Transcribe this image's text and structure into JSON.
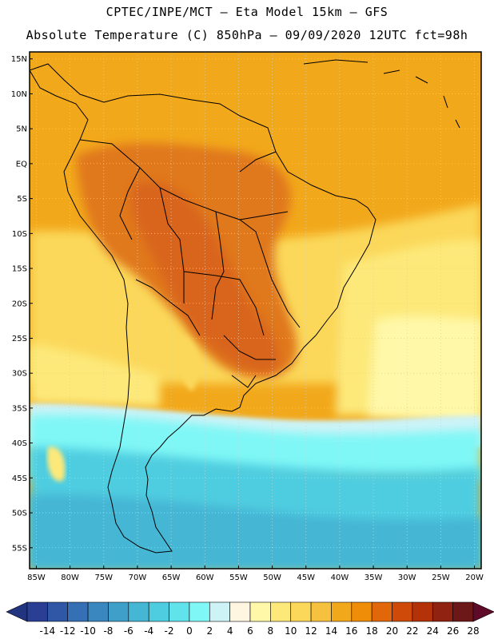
{
  "header": {
    "line1": "CPTEC/INPE/MCT  —   Eta Model 15km  —  GFS",
    "line2": "Absolute Temperature (C) 850hPa  —  09/09/2020 12UTC fct=98h"
  },
  "map": {
    "lon_range": [
      -86,
      -19
    ],
    "lat_range": [
      -58,
      16
    ],
    "lat_labels": [
      "15N",
      "10N",
      "5N",
      "EQ",
      "5S",
      "10S",
      "15S",
      "20S",
      "25S",
      "30S",
      "35S",
      "40S",
      "45S",
      "50S",
      "55S"
    ],
    "lat_values": [
      15,
      10,
      5,
      0,
      -5,
      -10,
      -15,
      -20,
      -25,
      -30,
      -35,
      -40,
      -45,
      -50,
      -55
    ],
    "lon_labels": [
      "85W",
      "80W",
      "75W",
      "70W",
      "65W",
      "60W",
      "55W",
      "50W",
      "45W",
      "40W",
      "35W",
      "30W",
      "25W",
      "20W"
    ],
    "lon_values": [
      -85,
      -80,
      -75,
      -70,
      -65,
      -60,
      -55,
      -50,
      -45,
      -40,
      -35,
      -30,
      -25,
      -20
    ]
  },
  "colorbar": {
    "values": [
      "-14",
      "-12",
      "-10",
      "-8",
      "-6",
      "-4",
      "-2",
      "0",
      "2",
      "4",
      "6",
      "8",
      "10",
      "12",
      "14",
      "16",
      "18",
      "20",
      "22",
      "24",
      "26",
      "28"
    ],
    "colors": [
      "#2a3f94",
      "#2f57a6",
      "#3470b3",
      "#3a87bf",
      "#3f9fc9",
      "#45b6d4",
      "#4fcde0",
      "#61e3ec",
      "#7ff7f6",
      "#cdf3f7",
      "#fff6e2",
      "#fff8a8",
      "#fde97a",
      "#fbd85a",
      "#f6c13f",
      "#f2a81b",
      "#ef8c08",
      "#e2660a",
      "#cf4a08",
      "#b33208",
      "#8f2210",
      "#6d1818"
    ],
    "arrow_left_color": "#223380",
    "arrow_right_color": "#600a2a"
  },
  "palette": {
    "ocean_warm": "#f2a81b",
    "land_hot": "#d9651a",
    "land_warm": "#e0781a",
    "mid_yellow": "#fde97a",
    "cool_cyan": "#61e3ec",
    "cold_blue": "#45b6d4",
    "deep_blue": "#3f9fc9",
    "border_color": "#000000",
    "grid_color": "#cfcfcf"
  }
}
